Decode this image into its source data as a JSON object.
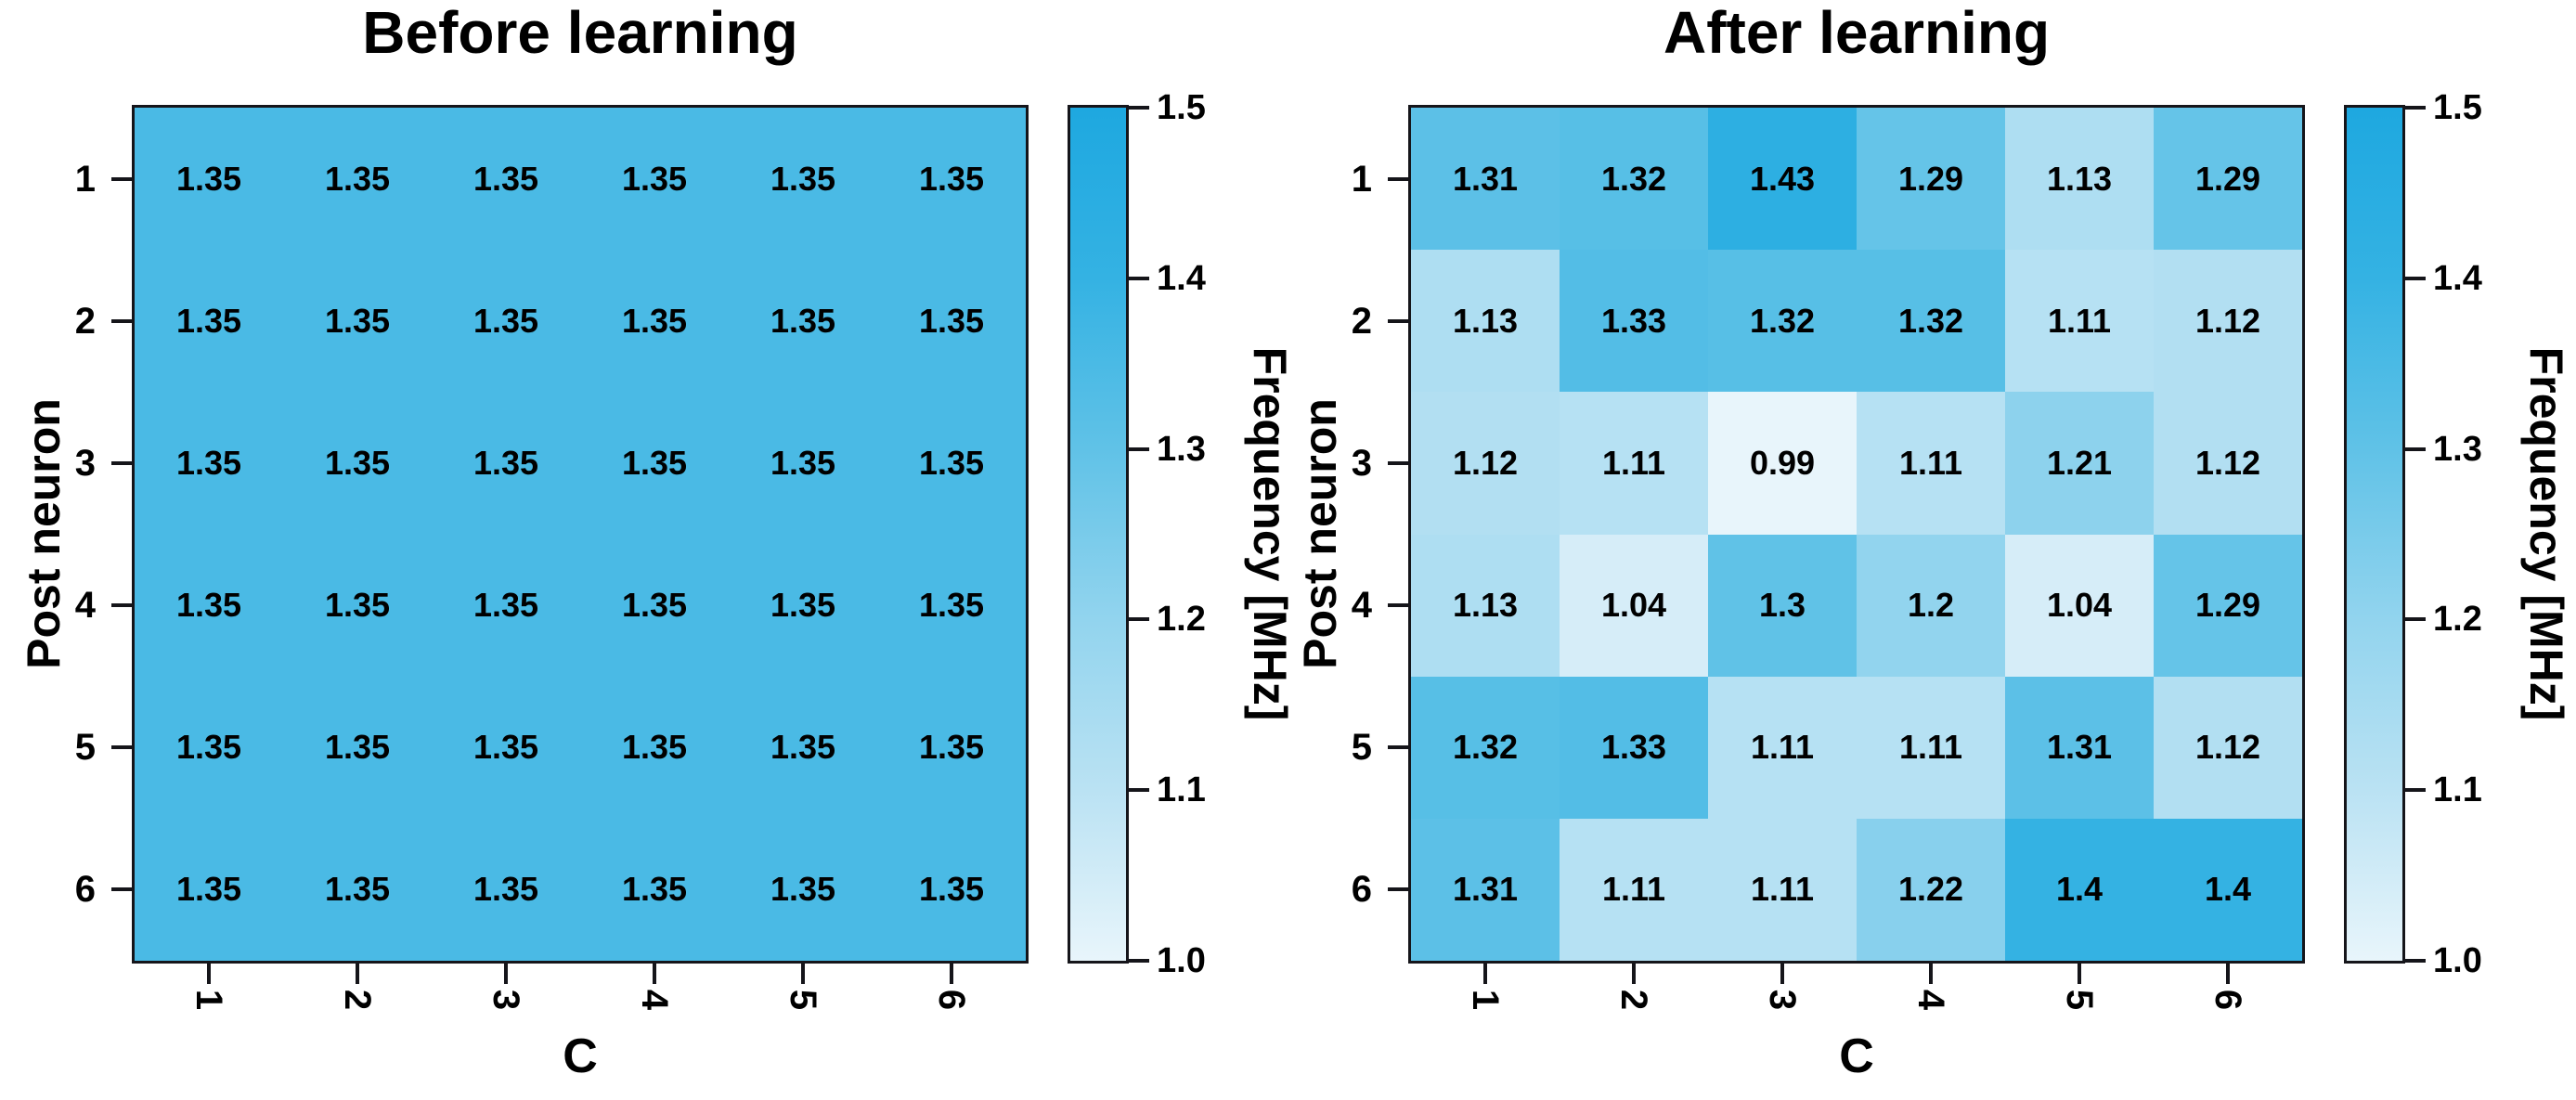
{
  "panels": [
    {
      "title": "Before learning",
      "xlabel": "C",
      "ylabel": "Post neuron",
      "x_ticks": [
        "1",
        "2",
        "3",
        "4",
        "5",
        "6"
      ],
      "y_ticks": [
        "1",
        "2",
        "3",
        "4",
        "5",
        "6"
      ],
      "cells": [
        [
          "1.35",
          "1.35",
          "1.35",
          "1.35",
          "1.35",
          "1.35"
        ],
        [
          "1.35",
          "1.35",
          "1.35",
          "1.35",
          "1.35",
          "1.35"
        ],
        [
          "1.35",
          "1.35",
          "1.35",
          "1.35",
          "1.35",
          "1.35"
        ],
        [
          "1.35",
          "1.35",
          "1.35",
          "1.35",
          "1.35",
          "1.35"
        ],
        [
          "1.35",
          "1.35",
          "1.35",
          "1.35",
          "1.35",
          "1.35"
        ],
        [
          "1.35",
          "1.35",
          "1.35",
          "1.35",
          "1.35",
          "1.35"
        ]
      ]
    },
    {
      "title": "After learning",
      "xlabel": "C",
      "ylabel": "Post neuron",
      "x_ticks": [
        "1",
        "2",
        "3",
        "4",
        "5",
        "6"
      ],
      "y_ticks": [
        "1",
        "2",
        "3",
        "4",
        "5",
        "6"
      ],
      "cells": [
        [
          "1.31",
          "1.32",
          "1.43",
          "1.29",
          "1.13",
          "1.29"
        ],
        [
          "1.13",
          "1.33",
          "1.32",
          "1.32",
          "1.11",
          "1.12"
        ],
        [
          "1.12",
          "1.11",
          "0.99",
          "1.11",
          "1.21",
          "1.12"
        ],
        [
          "1.13",
          "1.04",
          "1.3",
          "1.2",
          "1.04",
          "1.29"
        ],
        [
          "1.32",
          "1.33",
          "1.11",
          "1.11",
          "1.31",
          "1.12"
        ],
        [
          "1.31",
          "1.11",
          "1.11",
          "1.22",
          "1.4",
          "1.4"
        ]
      ]
    }
  ],
  "colorbar": {
    "label": "Frequency [MHz]",
    "ticks": [
      "1.5",
      "1.4",
      "1.3",
      "1.2",
      "1.1",
      "1.0"
    ],
    "min": 1.0,
    "max": 1.5
  },
  "colormap": {
    "stops": [
      [
        1.0,
        [
          232,
          245,
          251
        ]
      ],
      [
        1.1,
        [
          186,
          226,
          243
        ]
      ],
      [
        1.2,
        [
          146,
          212,
          238
        ]
      ],
      [
        1.3,
        [
          96,
          194,
          231
        ]
      ],
      [
        1.4,
        [
          52,
          178,
          227
        ]
      ],
      [
        1.5,
        [
          30,
          168,
          224
        ]
      ]
    ]
  },
  "chart_data": [
    {
      "type": "heatmap",
      "title": "Before learning",
      "xlabel": "C",
      "ylabel": "Post neuron",
      "x": [
        1,
        2,
        3,
        4,
        5,
        6
      ],
      "y": [
        1,
        2,
        3,
        4,
        5,
        6
      ],
      "values": [
        [
          1.35,
          1.35,
          1.35,
          1.35,
          1.35,
          1.35
        ],
        [
          1.35,
          1.35,
          1.35,
          1.35,
          1.35,
          1.35
        ],
        [
          1.35,
          1.35,
          1.35,
          1.35,
          1.35,
          1.35
        ],
        [
          1.35,
          1.35,
          1.35,
          1.35,
          1.35,
          1.35
        ],
        [
          1.35,
          1.35,
          1.35,
          1.35,
          1.35,
          1.35
        ],
        [
          1.35,
          1.35,
          1.35,
          1.35,
          1.35,
          1.35
        ]
      ],
      "colorbar_label": "Frequency [MHz]",
      "vmin": 1.0,
      "vmax": 1.5,
      "colorbar_ticks": [
        1.5,
        1.4,
        1.3,
        1.2,
        1.1,
        1.0
      ]
    },
    {
      "type": "heatmap",
      "title": "After learning",
      "xlabel": "C",
      "ylabel": "Post neuron",
      "x": [
        1,
        2,
        3,
        4,
        5,
        6
      ],
      "y": [
        1,
        2,
        3,
        4,
        5,
        6
      ],
      "values": [
        [
          1.31,
          1.32,
          1.43,
          1.29,
          1.13,
          1.29
        ],
        [
          1.13,
          1.33,
          1.32,
          1.32,
          1.11,
          1.12
        ],
        [
          1.12,
          1.11,
          0.99,
          1.11,
          1.21,
          1.12
        ],
        [
          1.13,
          1.04,
          1.3,
          1.2,
          1.04,
          1.29
        ],
        [
          1.32,
          1.33,
          1.11,
          1.11,
          1.31,
          1.12
        ],
        [
          1.31,
          1.11,
          1.11,
          1.22,
          1.4,
          1.4
        ]
      ],
      "colorbar_label": "Frequency [MHz]",
      "vmin": 1.0,
      "vmax": 1.5,
      "colorbar_ticks": [
        1.5,
        1.4,
        1.3,
        1.2,
        1.1,
        1.0
      ]
    }
  ]
}
